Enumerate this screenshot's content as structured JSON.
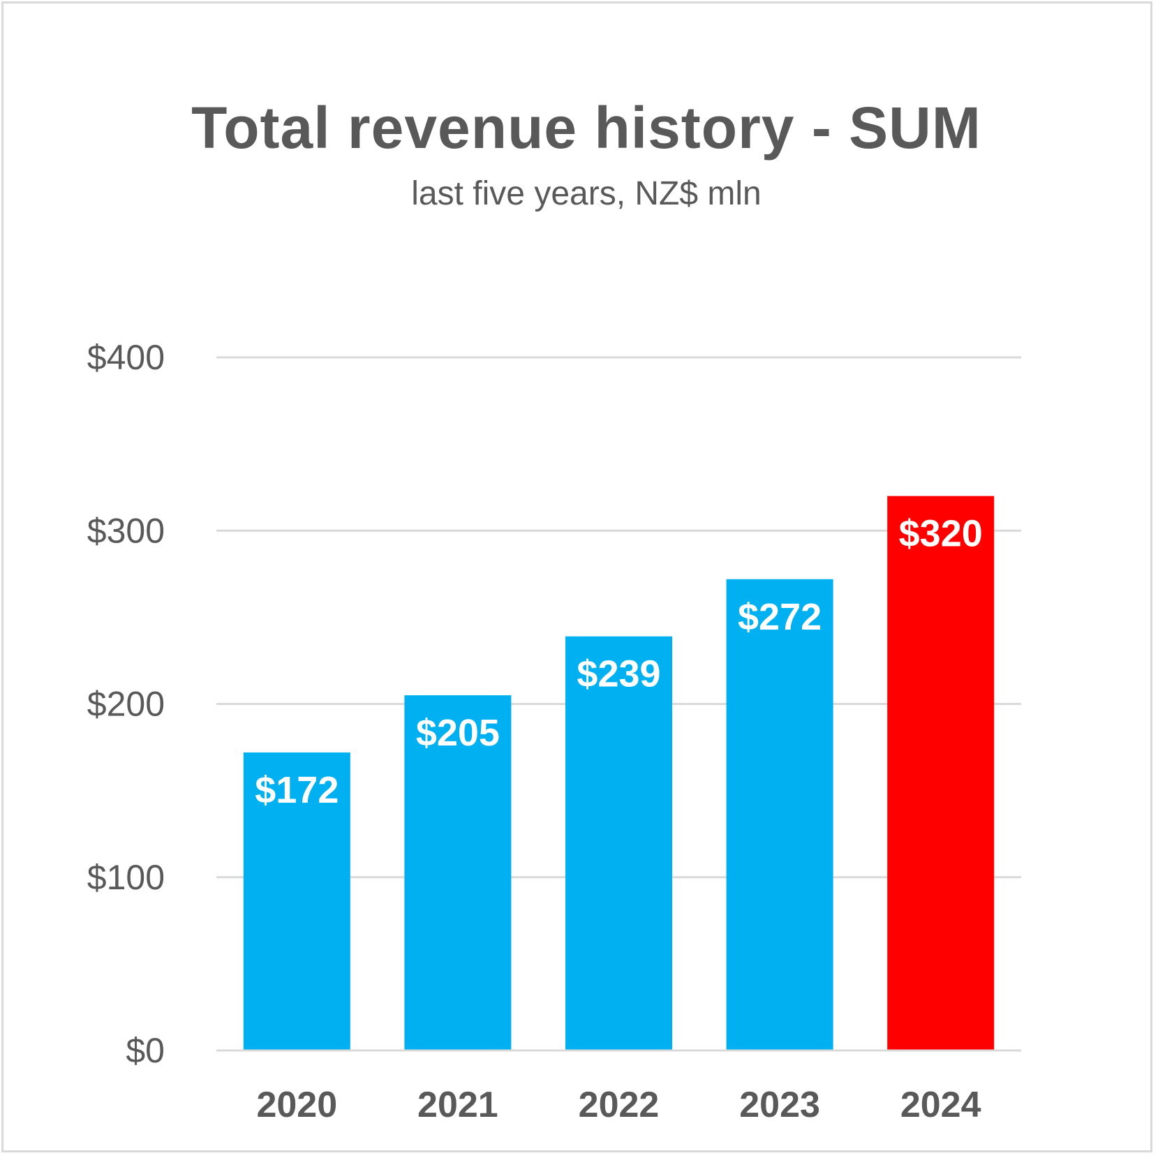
{
  "chart_data": {
    "type": "bar",
    "title": "Total revenue history - SUM",
    "subtitle": "last five years, NZ$ mln",
    "categories": [
      "2020",
      "2021",
      "2022",
      "2023",
      "2024"
    ],
    "values": [
      172,
      205,
      239,
      272,
      320
    ],
    "data_labels": [
      "$172",
      "$205",
      "$239",
      "$272",
      "$320"
    ],
    "bar_colors": [
      "#00B0F0",
      "#00B0F0",
      "#00B0F0",
      "#00B0F0",
      "#FF0000"
    ],
    "ylim": [
      0,
      400
    ],
    "yticks": [
      0,
      100,
      200,
      300,
      400
    ],
    "ytick_labels": [
      "$0",
      "$100",
      "$200",
      "$300",
      "$400"
    ],
    "grid": true,
    "xlabel": "",
    "ylabel": ""
  }
}
